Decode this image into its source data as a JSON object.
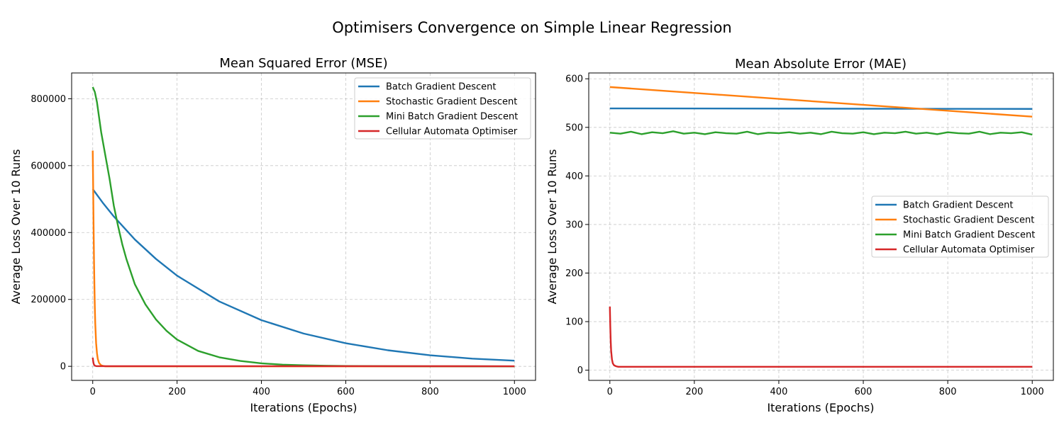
{
  "figure": {
    "title": "Optimisers Convergence on Simple Linear Regression"
  },
  "chart_data": [
    {
      "type": "line",
      "title": "Mean Squared Error (MSE)",
      "xlabel": "Iterations (Epochs)",
      "ylabel": "Average Loss Over 10 Runs",
      "xlim": [
        -50,
        1050
      ],
      "ylim": [
        -42000,
        877000
      ],
      "xticks": [
        0,
        200,
        400,
        600,
        800,
        1000
      ],
      "xtick_labels": [
        "0",
        "200",
        "400",
        "600",
        "800",
        "1000"
      ],
      "yticks": [
        0,
        200000,
        400000,
        600000,
        800000
      ],
      "ytick_labels": [
        "0",
        "200000",
        "400000",
        "600000",
        "800000"
      ],
      "grid": true,
      "legend": "upper right",
      "series": [
        {
          "name": "Batch Gradient Descent",
          "color": "#1f77b4",
          "x": [
            0,
            25,
            50,
            100,
            150,
            200,
            300,
            400,
            500,
            600,
            700,
            800,
            900,
            1000
          ],
          "y": [
            530000,
            487000,
            448000,
            379000,
            321000,
            271000,
            194000,
            138000,
            98000,
            69000,
            48000,
            33000,
            23000,
            17000
          ]
        },
        {
          "name": "Stochastic Gradient Descent",
          "color": "#ff7f0e",
          "x": [
            0,
            1,
            2,
            3,
            4,
            5,
            6,
            8,
            10,
            12,
            15,
            20,
            25,
            30,
            40,
            1000
          ],
          "y": [
            645000,
            540000,
            420000,
            320000,
            240000,
            175000,
            128000,
            70000,
            40000,
            22000,
            10000,
            3000,
            1000,
            0,
            0,
            0
          ]
        },
        {
          "name": "Mini Batch Gradient Descent",
          "color": "#2ca02c",
          "x": [
            0,
            5,
            10,
            20,
            30,
            40,
            50,
            60,
            70,
            80,
            100,
            125,
            150,
            175,
            200,
            250,
            300,
            350,
            400,
            450,
            500,
            550,
            600,
            700,
            800,
            900,
            1000
          ],
          "y": [
            835000,
            820000,
            790000,
            700000,
            630000,
            560000,
            480000,
            420000,
            365000,
            320000,
            245000,
            185000,
            140000,
            106000,
            80000,
            46000,
            27000,
            16000,
            9000,
            5000,
            3000,
            1800,
            1000,
            400,
            200,
            100,
            50
          ]
        },
        {
          "name": "Cellular Automata Optimiser",
          "color": "#d62728",
          "x": [
            0,
            1,
            2,
            3,
            5,
            8,
            10,
            1000
          ],
          "y": [
            26000,
            16000,
            9000,
            5000,
            2000,
            800,
            500,
            300
          ]
        }
      ]
    },
    {
      "type": "line",
      "title": "Mean Absolute Error (MAE)",
      "xlabel": "Iterations (Epochs)",
      "ylabel": "Average Loss Over 10 Runs",
      "xlim": [
        -50,
        1050
      ],
      "ylim": [
        -21,
        612
      ],
      "xticks": [
        0,
        200,
        400,
        600,
        800,
        1000
      ],
      "xtick_labels": [
        "0",
        "200",
        "400",
        "600",
        "800",
        "1000"
      ],
      "yticks": [
        0,
        100,
        200,
        300,
        400,
        500,
        600
      ],
      "ytick_labels": [
        "0",
        "100",
        "200",
        "300",
        "400",
        "500",
        "600"
      ],
      "grid": true,
      "legend": "center right",
      "series": [
        {
          "name": "Batch Gradient Descent",
          "color": "#1f77b4",
          "x": [
            0,
            1000
          ],
          "y": [
            539,
            538
          ]
        },
        {
          "name": "Stochastic Gradient Descent",
          "color": "#ff7f0e",
          "x": [
            0,
            1000
          ],
          "y": [
            583,
            522
          ]
        },
        {
          "name": "Mini Batch Gradient Descent",
          "color": "#2ca02c",
          "x": [
            0,
            25,
            50,
            75,
            100,
            125,
            150,
            175,
            200,
            225,
            250,
            275,
            300,
            325,
            350,
            375,
            400,
            425,
            450,
            475,
            500,
            525,
            550,
            575,
            600,
            625,
            650,
            675,
            700,
            725,
            750,
            775,
            800,
            825,
            850,
            875,
            900,
            925,
            950,
            975,
            1000
          ],
          "y": [
            489,
            487,
            491,
            486,
            490,
            488,
            492,
            487,
            489,
            486,
            490,
            488,
            487,
            491,
            486,
            489,
            488,
            490,
            487,
            489,
            486,
            491,
            488,
            487,
            490,
            486,
            489,
            488,
            491,
            487,
            489,
            486,
            490,
            488,
            487,
            491,
            486,
            489,
            488,
            490,
            485
          ]
        },
        {
          "name": "Cellular Automata Optimiser",
          "color": "#d62728",
          "x": [
            0,
            1,
            2,
            3,
            5,
            7,
            10,
            15,
            20,
            1000
          ],
          "y": [
            131,
            90,
            60,
            40,
            22,
            14,
            10,
            8,
            7,
            7
          ]
        }
      ]
    }
  ]
}
